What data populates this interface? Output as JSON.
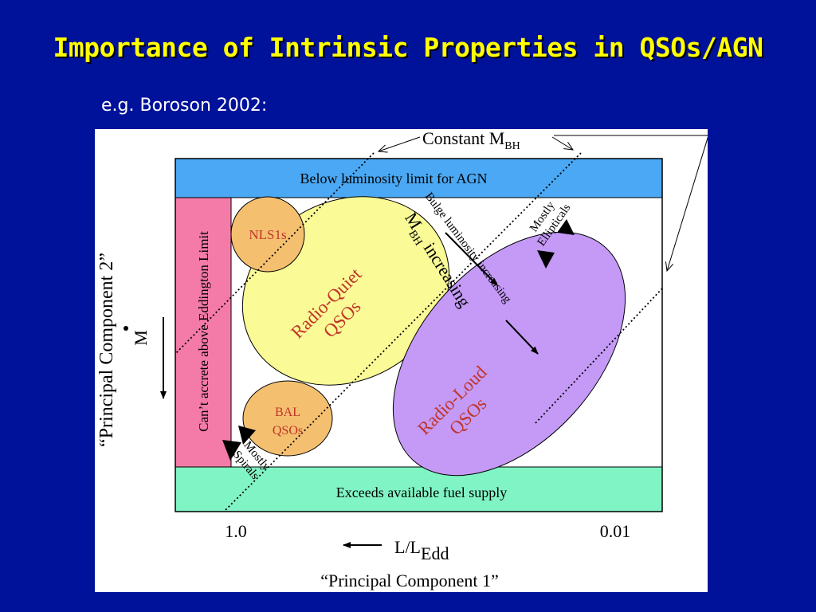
{
  "slide": {
    "title": "Importance of Intrinsic Properties in QSOs/AGN",
    "subtitle": "e.g. Boroson 2002:"
  },
  "diagram": {
    "constant_mbh": {
      "text": "Constant M",
      "sub": "BH"
    },
    "top_band": "Below luminosity limit for AGN",
    "bottom_band": "Exceeds available fuel supply",
    "left_band": "Can’t accrete above Eddington Limit",
    "nls1": "NLS1s",
    "radio_quiet": [
      "Radio-Quiet",
      "QSOs"
    ],
    "radio_loud": [
      "Radio-Loud",
      "QSOs"
    ],
    "bal": [
      "BAL",
      "QSOs"
    ],
    "mostly_spirals": [
      "Mostly",
      "Spirals"
    ],
    "mostly_ellipticals": [
      "Mostly",
      "Ellipticals"
    ],
    "mbh_increasing": {
      "m": "M",
      "sub": "BH",
      "rest": " increasing"
    },
    "bulge_luminosity": "Bulge luminosity increasing",
    "x_tick_left": "1.0",
    "x_tick_right": "0.01",
    "x_axis_label": {
      "text": "L/L",
      "sub": "Edd"
    },
    "x_axis_title": "“Principal Component 1”",
    "y_axis_label": "M",
    "y_axis_title": "“Principal Component 2”",
    "colors": {
      "slide_background": "#00129a",
      "title": "#ffff00",
      "top_band": "#4aa8f4",
      "bottom_band": "#80f4c4",
      "left_band": "#f47aa8",
      "radio_quiet_fill": "#fafa96",
      "radio_loud_fill": "#c49af6",
      "nls1_fill": "#f4c070",
      "region_text": "#c0342a"
    }
  }
}
